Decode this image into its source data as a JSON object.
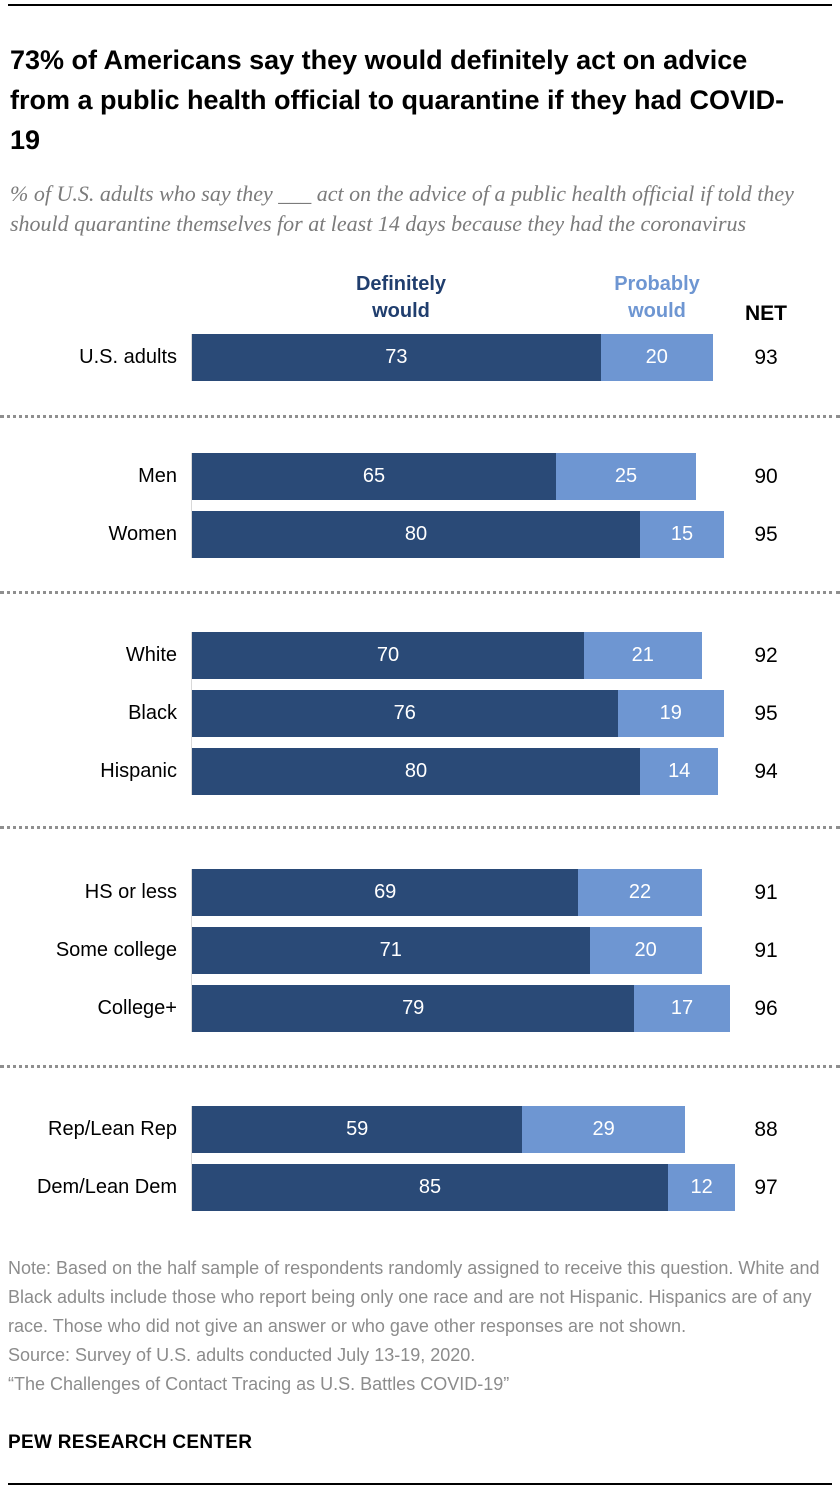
{
  "title": "73% of Americans say they would definitely act on advice from a public health official to quarantine if they had COVID-19",
  "subtitle": "% of U.S. adults who say they ___ act on the advice of a public health official if told they should quarantine themselves for at least 14 days because they had the coronavirus",
  "chart_data": {
    "type": "bar",
    "orientation": "horizontal",
    "stacked": true,
    "unit": "percent",
    "axis_max": 100,
    "series_labels": [
      "Definitely would",
      "Probably would"
    ],
    "net_label": "NET",
    "colors": {
      "definitely": "#2a4a77",
      "probably": "#6e96d2"
    },
    "groups": [
      {
        "rows": [
          {
            "label": "U.S. adults",
            "definitely": 73,
            "probably": 20,
            "net": 93
          }
        ]
      },
      {
        "rows": [
          {
            "label": "Men",
            "definitely": 65,
            "probably": 25,
            "net": 90
          },
          {
            "label": "Women",
            "definitely": 80,
            "probably": 15,
            "net": 95
          }
        ]
      },
      {
        "rows": [
          {
            "label": "White",
            "definitely": 70,
            "probably": 21,
            "net": 92
          },
          {
            "label": "Black",
            "definitely": 76,
            "probably": 19,
            "net": 95
          },
          {
            "label": "Hispanic",
            "definitely": 80,
            "probably": 14,
            "net": 94
          }
        ]
      },
      {
        "rows": [
          {
            "label": "HS or less",
            "definitely": 69,
            "probably": 22,
            "net": 91
          },
          {
            "label": "Some college",
            "definitely": 71,
            "probably": 20,
            "net": 91
          },
          {
            "label": "College+",
            "definitely": 79,
            "probably": 17,
            "net": 96
          }
        ]
      },
      {
        "rows": [
          {
            "label": "Rep/Lean Rep",
            "definitely": 59,
            "probably": 29,
            "net": 88
          },
          {
            "label": "Dem/Lean Dem",
            "definitely": 85,
            "probably": 12,
            "net": 97
          }
        ]
      }
    ]
  },
  "notes": {
    "note": "Note: Based on the half sample of respondents randomly assigned to receive this question. White and Black adults include those who report being only one race and are not Hispanic. Hispanics are of any race. Those who did not give an answer or who gave other responses are not shown.",
    "source": "Source: Survey of U.S. adults conducted July 13-19, 2020.",
    "quote": "“The Challenges of Contact Tracing as U.S. Battles COVID-19”"
  },
  "branding": "PEW RESEARCH CENTER"
}
